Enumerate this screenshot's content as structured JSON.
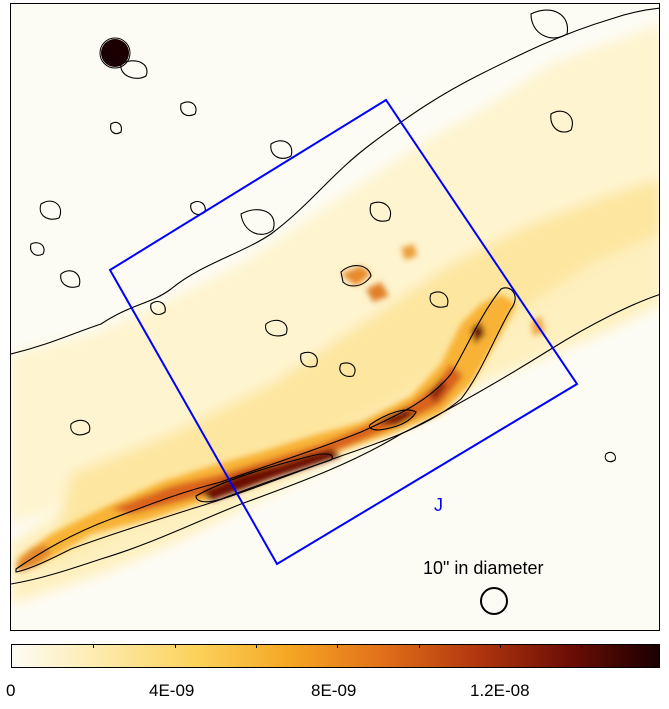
{
  "image": {
    "subject": "Astronomical emission intensity map with contours",
    "colormap": [
      "#fdfcf4",
      "#fde9a8",
      "#fbd25a",
      "#f5a623",
      "#e2701a",
      "#b3380f",
      "#6e0f06",
      "#1a0000"
    ]
  },
  "overlay": {
    "field_label": "J",
    "field_color": "#0000ff",
    "beam_label": "10\" in diameter"
  },
  "colorbar": {
    "min": 0,
    "max": 1.6e-08,
    "ticks": [
      {
        "label": "0",
        "value": 0
      },
      {
        "label": "4E-09",
        "value": 4e-09
      },
      {
        "label": "8E-09",
        "value": 8e-09
      },
      {
        "label": "1.2E-08",
        "value": 1.2e-08
      }
    ]
  }
}
